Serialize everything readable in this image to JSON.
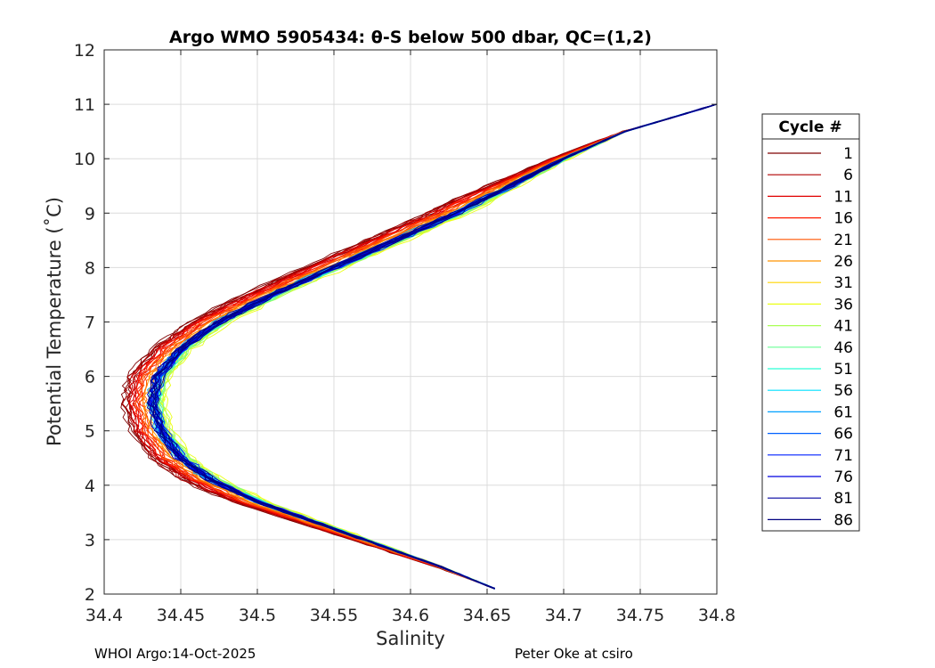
{
  "footer": {
    "left": "WHOI Argo:14-Oct-2025",
    "right": "Peter Oke at csiro"
  },
  "chart_data": {
    "type": "line",
    "title": "Argo WMO 5905434: θ-S below 500 dbar,  QC=(1,2)",
    "xlabel": "Salinity",
    "ylabel": "Potential Temperature (˚C)",
    "xlim": [
      34.4,
      34.8
    ],
    "ylim": [
      2,
      12
    ],
    "x_ticks": [
      "34.4",
      "34.45",
      "34.5",
      "34.55",
      "34.6",
      "34.65",
      "34.7",
      "34.75",
      "34.8"
    ],
    "y_ticks": [
      "2",
      "3",
      "4",
      "5",
      "6",
      "7",
      "8",
      "9",
      "10",
      "11",
      "12"
    ],
    "grid": true,
    "legend": {
      "title": "Cycle #",
      "placement": "right-outside",
      "entries": [
        {
          "label": "1",
          "color": "#7f0000"
        },
        {
          "label": "6",
          "color": "#b00000"
        },
        {
          "label": "11",
          "color": "#e00000"
        },
        {
          "label": "16",
          "color": "#ff1a00"
        },
        {
          "label": "21",
          "color": "#ff5500"
        },
        {
          "label": "26",
          "color": "#ff9500"
        },
        {
          "label": "31",
          "color": "#ffd500"
        },
        {
          "label": "36",
          "color": "#eaff15"
        },
        {
          "label": "41",
          "color": "#aaff55"
        },
        {
          "label": "46",
          "color": "#6aff95"
        },
        {
          "label": "51",
          "color": "#2affd5"
        },
        {
          "label": "56",
          "color": "#00e0ff"
        },
        {
          "label": "61",
          "color": "#00a0ff"
        },
        {
          "label": "66",
          "color": "#0060ff"
        },
        {
          "label": "71",
          "color": "#0020ff"
        },
        {
          "label": "76",
          "color": "#0000e0"
        },
        {
          "label": "81",
          "color": "#0000a0"
        },
        {
          "label": "86",
          "color": "#000080"
        }
      ]
    },
    "series_profile": {
      "description_points_salinity_temperature": [
        [
          34.655,
          2.1
        ],
        [
          34.62,
          2.5
        ],
        [
          34.58,
          2.9
        ],
        [
          34.54,
          3.3
        ],
        [
          34.5,
          3.7
        ],
        [
          34.47,
          4.1
        ],
        [
          34.45,
          4.5
        ],
        [
          34.437,
          5.0
        ],
        [
          34.432,
          5.5
        ],
        [
          34.435,
          6.0
        ],
        [
          34.45,
          6.5
        ],
        [
          34.475,
          7.0
        ],
        [
          34.51,
          7.5
        ],
        [
          34.55,
          8.0
        ],
        [
          34.59,
          8.5
        ],
        [
          34.63,
          9.0
        ],
        [
          34.665,
          9.5
        ],
        [
          34.7,
          10.0
        ],
        [
          34.74,
          10.5
        ],
        [
          34.8,
          11.0
        ]
      ],
      "offsets_by_cycle": [
        -0.018,
        -0.016,
        -0.013,
        -0.01,
        -0.008,
        -0.004,
        0.002,
        0.006,
        0.004,
        0.003,
        0.001,
        0.0,
        -0.001,
        0.0,
        0.001,
        0.0,
        -0.001,
        0.0
      ]
    }
  }
}
